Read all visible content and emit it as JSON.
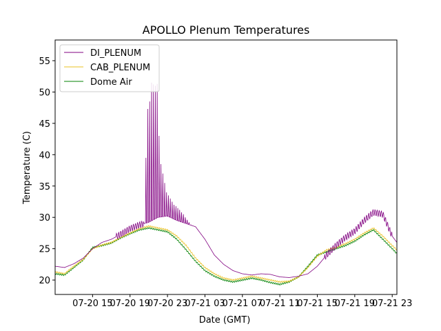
{
  "chart_data": {
    "type": "line",
    "title": "APOLLO Plenum Temperatures",
    "xlabel": "Date (GMT)",
    "ylabel": "Temperature (C)",
    "x_unit": "hours (GMT) from 07-20 11:00",
    "xlim": [
      0,
      36.5
    ],
    "ylim": [
      17.7,
      58.3
    ],
    "xticks": [
      {
        "x": 4,
        "label": "07-20 15"
      },
      {
        "x": 8,
        "label": "07-20 19"
      },
      {
        "x": 12,
        "label": "07-20 23"
      },
      {
        "x": 16,
        "label": "07-21 03"
      },
      {
        "x": 20,
        "label": "07-21 07"
      },
      {
        "x": 24,
        "label": "07-21 11"
      },
      {
        "x": 28,
        "label": "07-21 15"
      },
      {
        "x": 32,
        "label": "07-21 19"
      },
      {
        "x": 36,
        "label": "07-21 23"
      }
    ],
    "yticks": [
      20,
      25,
      30,
      35,
      40,
      45,
      50,
      55
    ],
    "grid": false,
    "legend": {
      "placement": "upper-left"
    },
    "series": [
      {
        "name": "DI_PLENUM",
        "color": "#800080",
        "x": [
          0,
          1,
          2,
          3,
          4,
          5,
          6,
          7,
          8,
          9,
          10,
          11,
          12,
          13,
          14,
          15,
          16,
          17,
          18,
          19,
          20,
          21,
          22,
          23,
          24,
          25,
          26,
          27,
          28,
          29,
          30,
          31,
          32,
          33,
          34,
          35,
          36,
          36.5
        ],
        "values": [
          22.2,
          22.0,
          22.6,
          23.5,
          25.0,
          26.0,
          26.5,
          27.3,
          28.2,
          28.8,
          29.2,
          30.0,
          30.2,
          29.5,
          29.0,
          28.5,
          26.5,
          24.0,
          22.5,
          21.5,
          21.0,
          20.8,
          21.0,
          20.9,
          20.5,
          20.4,
          20.6,
          21.0,
          22.2,
          24.0,
          25.5,
          26.8,
          27.8,
          29.5,
          30.8,
          30.5,
          27.0,
          26.0
        ],
        "spikes": [
          {
            "x": 9.7,
            "peak": 39.5
          },
          {
            "x": 9.9,
            "peak": 47.3
          },
          {
            "x": 10.1,
            "peak": 48.5
          },
          {
            "x": 10.3,
            "peak": 51.5
          },
          {
            "x": 10.5,
            "peak": 51.2
          },
          {
            "x": 10.7,
            "peak": 51.0
          },
          {
            "x": 10.9,
            "peak": 51.3
          },
          {
            "x": 11.1,
            "peak": 43.0
          },
          {
            "x": 11.3,
            "peak": 38.5
          },
          {
            "x": 11.5,
            "peak": 37.0
          },
          {
            "x": 11.7,
            "peak": 35.5
          },
          {
            "x": 11.9,
            "peak": 34.0
          },
          {
            "x": 12.1,
            "peak": 33.5
          },
          {
            "x": 12.3,
            "peak": 33.0
          },
          {
            "x": 12.5,
            "peak": 32.5
          },
          {
            "x": 12.7,
            "peak": 32.0
          },
          {
            "x": 12.9,
            "peak": 31.8
          },
          {
            "x": 13.1,
            "peak": 31.5
          },
          {
            "x": 13.3,
            "peak": 31.2
          },
          {
            "x": 13.5,
            "peak": 30.8
          },
          {
            "x": 13.7,
            "peak": 30.5
          },
          {
            "x": 13.9,
            "peak": 30.0
          },
          {
            "x": 14.1,
            "peak": 29.6
          },
          {
            "x": 14.3,
            "peak": 29.2
          },
          {
            "x": 14.5,
            "peak": 28.8
          },
          {
            "x": 14.7,
            "peak": 28.3
          }
        ]
      },
      {
        "name": "CAB_PLENUM",
        "color": "#e8c020",
        "x": [
          0,
          1,
          2,
          3,
          4,
          5,
          6,
          7,
          8,
          9,
          10,
          11,
          12,
          13,
          14,
          15,
          16,
          17,
          18,
          19,
          20,
          21,
          22,
          23,
          24,
          25,
          26,
          27,
          28,
          29,
          30,
          31,
          32,
          33,
          34,
          35,
          36,
          36.5
        ],
        "values": [
          21.3,
          21.0,
          22.2,
          23.3,
          25.0,
          25.6,
          26.0,
          26.8,
          27.5,
          28.2,
          28.6,
          28.3,
          28.0,
          27.0,
          25.5,
          23.5,
          22.0,
          21.0,
          20.3,
          20.0,
          20.3,
          20.6,
          20.3,
          20.0,
          19.7,
          19.8,
          20.5,
          22.0,
          23.8,
          24.8,
          25.2,
          25.8,
          26.5,
          27.5,
          28.3,
          27.0,
          25.5,
          24.8
        ]
      },
      {
        "name": "Dome Air",
        "color": "#008000",
        "x": [
          0,
          1,
          2,
          3,
          4,
          5,
          6,
          7,
          8,
          9,
          10,
          11,
          12,
          13,
          14,
          15,
          16,
          17,
          18,
          19,
          20,
          21,
          22,
          23,
          24,
          25,
          26,
          27,
          28,
          29,
          30,
          31,
          32,
          33,
          34,
          35,
          36,
          36.5
        ],
        "values": [
          21.0,
          20.8,
          22.0,
          23.2,
          25.2,
          25.5,
          25.9,
          26.7,
          27.4,
          28.0,
          28.3,
          28.0,
          27.7,
          26.5,
          24.8,
          23.0,
          21.5,
          20.6,
          20.0,
          19.7,
          20.0,
          20.3,
          20.0,
          19.6,
          19.3,
          19.7,
          20.5,
          22.2,
          24.0,
          24.5,
          25.0,
          25.5,
          26.2,
          27.2,
          28.0,
          26.5,
          25.0,
          24.2
        ]
      }
    ]
  }
}
